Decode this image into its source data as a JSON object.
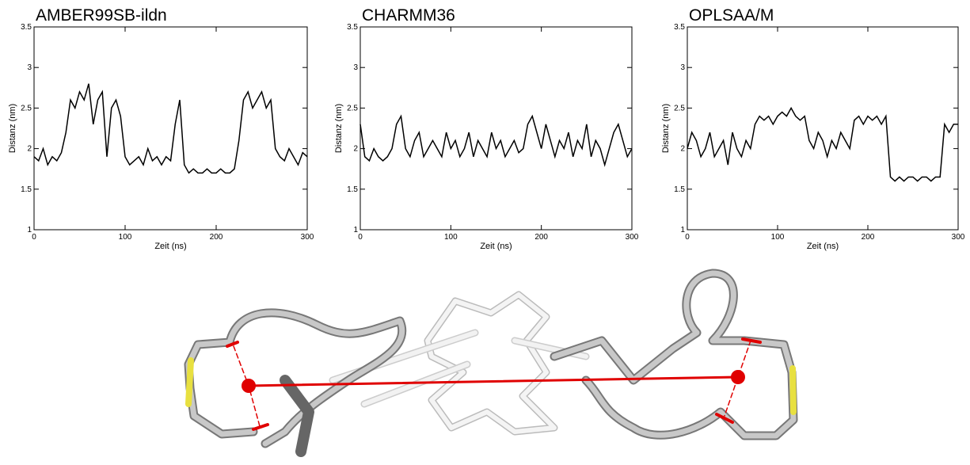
{
  "chart_data": [
    {
      "type": "line",
      "title": "AMBER99SB-ildn",
      "x_label": "Zeit (ns)",
      "y_label": "Distanz (nm)",
      "color": "#000000",
      "x": [
        0,
        5,
        10,
        15,
        20,
        25,
        30,
        35,
        40,
        45,
        50,
        55,
        60,
        65,
        70,
        75,
        80,
        85,
        90,
        95,
        100,
        105,
        110,
        115,
        120,
        125,
        130,
        135,
        140,
        145,
        150,
        155,
        160,
        165,
        170,
        175,
        180,
        185,
        190,
        195,
        200,
        205,
        210,
        215,
        220,
        225,
        230,
        235,
        240,
        245,
        250,
        255,
        260,
        265,
        270,
        275,
        280,
        285,
        290,
        295,
        300
      ],
      "values": [
        1.9,
        1.85,
        2.0,
        1.8,
        1.9,
        1.85,
        1.95,
        2.2,
        2.6,
        2.5,
        2.7,
        2.6,
        2.8,
        2.3,
        2.6,
        2.7,
        1.9,
        2.5,
        2.6,
        2.4,
        1.9,
        1.8,
        1.85,
        1.9,
        1.8,
        2.0,
        1.85,
        1.9,
        1.8,
        1.9,
        1.85,
        2.3,
        2.6,
        1.8,
        1.7,
        1.75,
        1.7,
        1.7,
        1.75,
        1.7,
        1.7,
        1.75,
        1.7,
        1.7,
        1.75,
        2.1,
        2.6,
        2.7,
        2.5,
        2.6,
        2.7,
        2.5,
        2.6,
        2.0,
        1.9,
        1.85,
        2.0,
        1.9,
        1.8,
        1.95,
        1.9
      ],
      "xlim": [
        0,
        300
      ],
      "xticks": [
        0,
        100,
        200,
        300
      ],
      "ylim": [
        1,
        3.5
      ],
      "yticks": [
        1,
        1.5,
        2,
        2.5,
        3,
        3.5
      ]
    },
    {
      "type": "line",
      "title": "CHARMM36",
      "x_label": "Zeit (ns)",
      "y_label": "Distanz (nm)",
      "color": "#000000",
      "x": [
        0,
        5,
        10,
        15,
        20,
        25,
        30,
        35,
        40,
        45,
        50,
        55,
        60,
        65,
        70,
        75,
        80,
        85,
        90,
        95,
        100,
        105,
        110,
        115,
        120,
        125,
        130,
        135,
        140,
        145,
        150,
        155,
        160,
        165,
        170,
        175,
        180,
        185,
        190,
        195,
        200,
        205,
        210,
        215,
        220,
        225,
        230,
        235,
        240,
        245,
        250,
        255,
        260,
        265,
        270,
        275,
        280,
        285,
        290,
        295,
        300
      ],
      "values": [
        2.3,
        1.9,
        1.85,
        2.0,
        1.9,
        1.85,
        1.9,
        2.0,
        2.3,
        2.4,
        2.0,
        1.9,
        2.1,
        2.2,
        1.9,
        2.0,
        2.1,
        2.0,
        1.9,
        2.2,
        2.0,
        2.1,
        1.9,
        2.0,
        2.2,
        1.9,
        2.1,
        2.0,
        1.9,
        2.2,
        2.0,
        2.1,
        1.9,
        2.0,
        2.1,
        1.95,
        2.0,
        2.3,
        2.4,
        2.2,
        2.0,
        2.3,
        2.1,
        1.9,
        2.1,
        2.0,
        2.2,
        1.9,
        2.1,
        2.0,
        2.3,
        1.9,
        2.1,
        2.0,
        1.8,
        2.0,
        2.2,
        2.3,
        2.1,
        1.9,
        2.0
      ],
      "xlim": [
        0,
        300
      ],
      "xticks": [
        0,
        100,
        200,
        300
      ],
      "ylim": [
        1,
        3.5
      ],
      "yticks": [
        1,
        1.5,
        2,
        2.5,
        3,
        3.5
      ]
    },
    {
      "type": "line",
      "title": "OPLSAA/M",
      "x_label": "Zeit (ns)",
      "y_label": "Distanz (nm)",
      "color": "#000000",
      "x": [
        0,
        5,
        10,
        15,
        20,
        25,
        30,
        35,
        40,
        45,
        50,
        55,
        60,
        65,
        70,
        75,
        80,
        85,
        90,
        95,
        100,
        105,
        110,
        115,
        120,
        125,
        130,
        135,
        140,
        145,
        150,
        155,
        160,
        165,
        170,
        175,
        180,
        185,
        190,
        195,
        200,
        205,
        210,
        215,
        220,
        225,
        230,
        235,
        240,
        245,
        250,
        255,
        260,
        265,
        270,
        275,
        280,
        285,
        290,
        295,
        300
      ],
      "values": [
        2.0,
        2.2,
        2.1,
        1.9,
        2.0,
        2.2,
        1.9,
        2.0,
        2.1,
        1.8,
        2.2,
        2.0,
        1.9,
        2.1,
        2.0,
        2.3,
        2.4,
        2.35,
        2.4,
        2.3,
        2.4,
        2.45,
        2.4,
        2.5,
        2.4,
        2.35,
        2.4,
        2.1,
        2.0,
        2.2,
        2.1,
        1.9,
        2.1,
        2.0,
        2.2,
        2.1,
        2.0,
        2.35,
        2.4,
        2.3,
        2.4,
        2.35,
        2.4,
        2.3,
        2.4,
        1.65,
        1.6,
        1.65,
        1.6,
        1.65,
        1.65,
        1.6,
        1.65,
        1.65,
        1.6,
        1.65,
        1.65,
        2.3,
        2.2,
        2.3,
        2.3
      ],
      "xlim": [
        0,
        300
      ],
      "xticks": [
        0,
        100,
        200,
        300
      ],
      "ylim": [
        1,
        3.5
      ],
      "yticks": [
        1,
        1.5,
        2,
        2.5,
        3,
        3.5
      ]
    }
  ]
}
